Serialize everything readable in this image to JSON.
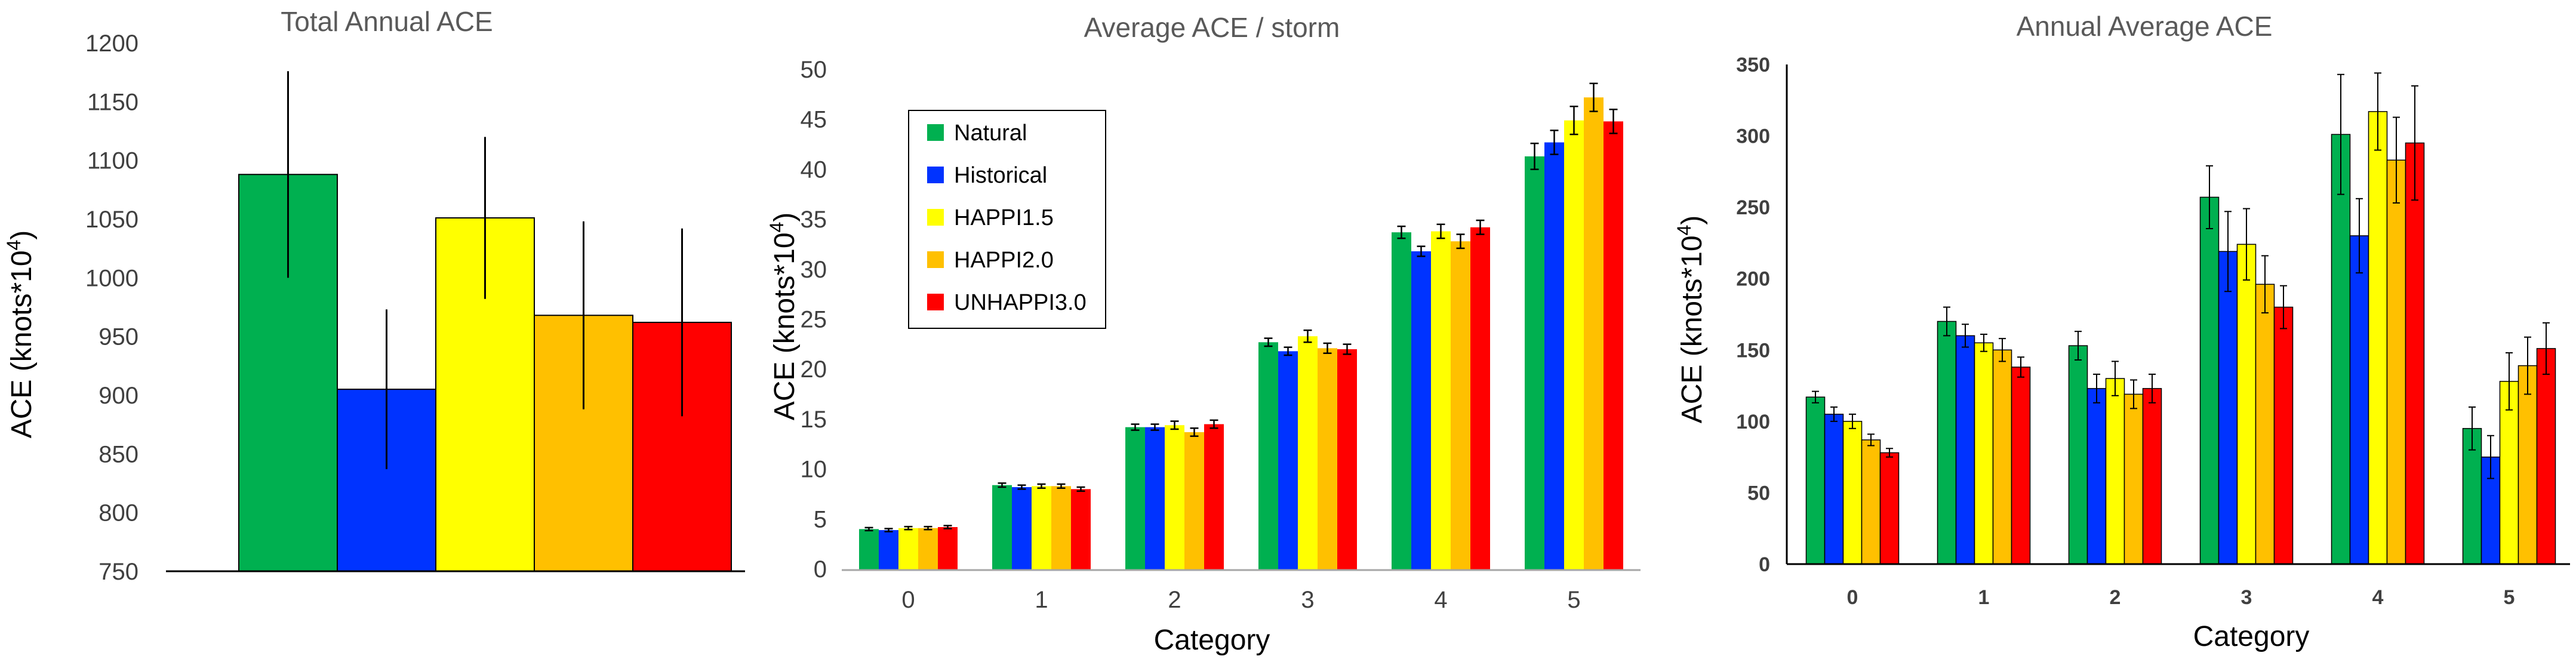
{
  "chart_data": [
    {
      "type": "bar",
      "title": "Total Annual ACE",
      "xlabel": "",
      "ylabel": "ACE (knots*10",
      "ylabel_sup": "4",
      "ylabel_close": ")",
      "ylim": [
        750,
        1200
      ],
      "yticks": [
        "750",
        "800",
        "850",
        "900",
        "950",
        "1000",
        "1050",
        "1100",
        "1150",
        "1200"
      ],
      "ytick_values": [
        750,
        800,
        850,
        900,
        950,
        1000,
        1050,
        1100,
        1150,
        1200
      ],
      "categories": [
        "Natural",
        "Historical",
        "HAPPI1.5",
        "HAPPI2.0",
        "UNHAPPI3.0"
      ],
      "values": [
        1088,
        905,
        1051,
        968,
        962
      ],
      "errors": [
        88,
        68,
        69,
        80,
        80
      ],
      "colors": [
        "#00b050",
        "#0033ff",
        "#ffff00",
        "#ffc000",
        "#ff0000"
      ]
    },
    {
      "type": "bar",
      "title": "Average ACE / storm",
      "xlabel": "Category",
      "ylabel": "ACE (knots*10",
      "ylabel_sup": "4",
      "ylabel_close": ")",
      "ylim": [
        0,
        50
      ],
      "yticks": [
        "0",
        "5",
        "10",
        "15",
        "20",
        "25",
        "30",
        "35",
        "40",
        "45",
        "50"
      ],
      "ytick_values": [
        0,
        5,
        10,
        15,
        20,
        25,
        30,
        35,
        40,
        45,
        50
      ],
      "categories": [
        "0",
        "1",
        "2",
        "3",
        "4",
        "5"
      ],
      "legend_position": "top-left",
      "series": [
        {
          "name": "Natural",
          "color": "#00b050",
          "values": [
            4.1,
            8.5,
            14.3,
            22.8,
            33.8,
            41.4
          ],
          "errors": [
            0.15,
            0.2,
            0.3,
            0.4,
            0.6,
            1.3
          ]
        },
        {
          "name": "Historical",
          "color": "#0033ff",
          "values": [
            4.0,
            8.3,
            14.3,
            21.9,
            31.9,
            42.8
          ],
          "errors": [
            0.15,
            0.2,
            0.3,
            0.4,
            0.5,
            1.2
          ]
        },
        {
          "name": "HAPPI1.5",
          "color": "#ffff00",
          "values": [
            4.2,
            8.4,
            14.5,
            23.4,
            33.9,
            45.0
          ],
          "errors": [
            0.15,
            0.2,
            0.4,
            0.6,
            0.7,
            1.4
          ]
        },
        {
          "name": "HAPPI2.0",
          "color": "#ffc000",
          "values": [
            4.2,
            8.4,
            13.8,
            22.2,
            32.9,
            47.3
          ],
          "errors": [
            0.15,
            0.2,
            0.4,
            0.5,
            0.7,
            1.4
          ]
        },
        {
          "name": "UNHAPPI3.0",
          "color": "#ff0000",
          "values": [
            4.3,
            8.1,
            14.6,
            22.1,
            34.3,
            44.9
          ],
          "errors": [
            0.15,
            0.2,
            0.4,
            0.5,
            0.7,
            1.2
          ]
        }
      ]
    },
    {
      "type": "bar",
      "title": "Annual Average ACE",
      "xlabel": "Category",
      "ylabel": "ACE (knots*10",
      "ylabel_sup": "4",
      "ylabel_close": ")",
      "ylim": [
        0,
        350
      ],
      "yticks": [
        "0",
        "50",
        "100",
        "150",
        "200",
        "250",
        "300",
        "350"
      ],
      "ytick_values": [
        0,
        50,
        100,
        150,
        200,
        250,
        300,
        350
      ],
      "categories": [
        "0",
        "1",
        "2",
        "3",
        "4",
        "5"
      ],
      "series": [
        {
          "name": "Natural",
          "color": "#00b050",
          "values": [
            117,
            170,
            153,
            257,
            301,
            95
          ],
          "errors": [
            4,
            10,
            10,
            22,
            42,
            15
          ]
        },
        {
          "name": "Historical",
          "color": "#0033ff",
          "values": [
            105,
            160,
            123,
            219,
            230,
            75
          ],
          "errors": [
            5,
            8,
            10,
            28,
            26,
            15
          ]
        },
        {
          "name": "HAPPI1.5",
          "color": "#ffff00",
          "values": [
            100,
            155,
            130,
            224,
            317,
            128
          ],
          "errors": [
            5,
            6,
            12,
            25,
            27,
            20
          ]
        },
        {
          "name": "HAPPI2.0",
          "color": "#ffc000",
          "values": [
            87,
            150,
            119,
            196,
            283,
            139
          ],
          "errors": [
            4,
            8,
            10,
            20,
            30,
            20
          ]
        },
        {
          "name": "UNHAPPI3.0",
          "color": "#ff0000",
          "values": [
            78,
            138,
            123,
            180,
            295,
            151
          ],
          "errors": [
            3,
            7,
            10,
            15,
            40,
            18
          ]
        }
      ]
    }
  ]
}
